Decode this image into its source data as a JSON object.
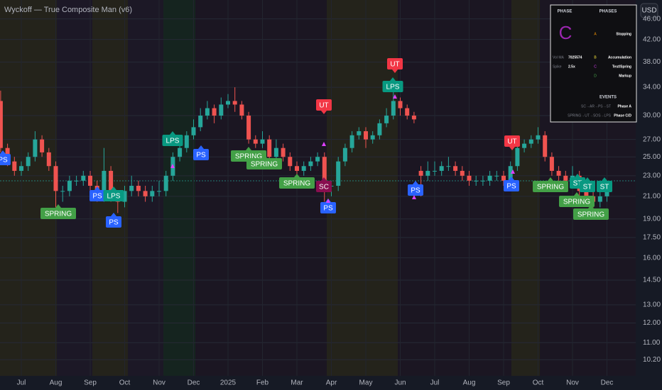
{
  "chart_data": {
    "type": "candlestick",
    "title": "Wyckoff — True Composite Man (v6)",
    "currency": "USD",
    "categories": [
      null,
      null,
      null,
      "Jul",
      null,
      null,
      null,
      null,
      "Aug",
      null,
      null,
      null,
      null,
      "Sep",
      null,
      null,
      null,
      null,
      "Oct",
      null,
      null,
      null,
      null,
      "Nov",
      null,
      null,
      null,
      null,
      "Dec",
      null,
      null,
      null,
      null,
      "2025",
      null,
      null,
      null,
      null,
      "Feb",
      null,
      null,
      null,
      null,
      "Mar",
      null,
      null,
      null,
      null,
      "Apr",
      null,
      null,
      null,
      null,
      "May",
      null,
      null,
      null,
      null,
      "Jun",
      null,
      null,
      null,
      null,
      "Jul",
      null,
      null,
      null,
      null,
      "Aug",
      null,
      null,
      null,
      null,
      "Sep",
      null,
      null,
      null,
      null,
      "Oct",
      null,
      null,
      null,
      null,
      "Nov",
      null,
      null,
      null,
      null,
      "Dec"
    ],
    "open": [
      32,
      26,
      24.5,
      23.5,
      24,
      25,
      27,
      25.5,
      24,
      21.5,
      21.5,
      22.5,
      22.5,
      23,
      22,
      21,
      23.5,
      21,
      20.5,
      21.5,
      22,
      21.5,
      21,
      21.5,
      21.5,
      23,
      25,
      26,
      27.5,
      28.5,
      30,
      31,
      30,
      31.5,
      32,
      31.5,
      30,
      27,
      26.5,
      27,
      25,
      26,
      25,
      24,
      23.5,
      24,
      24.5,
      25,
      22,
      22,
      24.5,
      26,
      27.5,
      28,
      27,
      27.5,
      29,
      30,
      32,
      31,
      30,
      23.5,
      23,
      23.5,
      23.5,
      24,
      24,
      23.5,
      23,
      22.5,
      22.5,
      22.5,
      23,
      23,
      22.5,
      24,
      26,
      26.5,
      27,
      27.5,
      25,
      23.5,
      23,
      22.5,
      23,
      21.5,
      21,
      20.5,
      21
    ],
    "high": [
      33.5,
      26.5,
      25,
      24.5,
      25.5,
      28,
      27.5,
      26,
      24.5,
      22,
      23,
      23,
      23.5,
      23.5,
      22.5,
      26,
      24,
      21.5,
      22,
      23,
      22.5,
      22,
      22,
      22.5,
      23.5,
      25.5,
      27,
      28,
      29.5,
      31,
      32,
      31.5,
      32.5,
      33,
      34,
      32,
      30.5,
      27.5,
      28,
      27.5,
      27,
      26.5,
      25.5,
      24.5,
      24.5,
      25,
      25.5,
      25.5,
      22.5,
      25,
      26.5,
      28,
      28.5,
      28.5,
      28,
      29.5,
      31,
      34.5,
      32.5,
      31.5,
      30.5,
      24,
      24.5,
      24.5,
      24.5,
      25,
      24.5,
      24,
      23.5,
      23,
      23,
      23.5,
      23.5,
      23.5,
      24.5,
      26.5,
      27,
      27.5,
      28.5,
      28,
      25.5,
      24,
      23.5,
      24,
      23.5,
      22,
      21.5,
      21.5,
      22.5
    ],
    "low": [
      25.5,
      24,
      23,
      23,
      23.5,
      24.5,
      25,
      23.5,
      20,
      20.5,
      21,
      22,
      22,
      21.5,
      20.5,
      20.5,
      20.5,
      19.5,
      20,
      21,
      21,
      20.5,
      20.5,
      21,
      21,
      22.5,
      24.5,
      25.5,
      27,
      28,
      29.5,
      29,
      29.5,
      31,
      30.5,
      29.5,
      26.5,
      26,
      26,
      24.5,
      24.5,
      24.5,
      23.5,
      23,
      23,
      23.5,
      24,
      20.5,
      21,
      21.5,
      24,
      25.5,
      27,
      26,
      26.5,
      27,
      28.5,
      29.5,
      30,
      29.5,
      29,
      21,
      22.5,
      23,
      23,
      23.5,
      23,
      22.5,
      22,
      22,
      22,
      22,
      22.5,
      22,
      22,
      23.5,
      25.5,
      26,
      26.5,
      24.5,
      23,
      22.5,
      22,
      22,
      21,
      20.5,
      20,
      20,
      20.5
    ],
    "close": [
      26,
      24.5,
      23.5,
      24,
      25,
      27,
      25.5,
      24,
      21.5,
      21.5,
      22.5,
      22.5,
      23,
      22,
      21,
      23.5,
      21,
      20.5,
      21.5,
      22,
      21.5,
      21,
      21.5,
      21.5,
      23,
      25,
      26,
      27.5,
      28.5,
      30,
      31,
      30,
      31.5,
      32,
      31.5,
      30,
      27,
      26.5,
      27,
      25,
      26,
      25,
      24,
      23.5,
      24,
      24.5,
      25,
      22,
      22,
      24.5,
      26,
      27.5,
      28,
      27,
      27.5,
      29,
      30,
      32,
      31,
      30,
      29.5,
      23,
      23.5,
      23.5,
      24,
      24,
      23.5,
      23,
      22.5,
      22.5,
      22.5,
      23,
      23,
      22.5,
      24,
      26,
      26.5,
      27,
      27.5,
      25,
      23.5,
      23,
      22.5,
      23,
      21.5,
      21,
      20.5,
      21,
      22
    ],
    "up_color": "#26a69a",
    "down_color": "#ef5350",
    "log_scale": true,
    "grid": true,
    "ylim": [
      9.5,
      50
    ],
    "yticks": [
      {
        "value": 10.2,
        "label": "10.20"
      },
      {
        "value": 11,
        "label": "11.00"
      },
      {
        "value": 12,
        "label": "12.00"
      },
      {
        "value": 13,
        "label": "13.00"
      },
      {
        "value": 14.5,
        "label": "14.50"
      },
      {
        "value": 16,
        "label": "16.00"
      },
      {
        "value": 17.5,
        "label": "17.50"
      },
      {
        "value": 19,
        "label": "19.00"
      },
      {
        "value": 21,
        "label": "21.00"
      },
      {
        "value": 23,
        "label": "23.00"
      },
      {
        "value": 25,
        "label": "25.00"
      },
      {
        "value": 27,
        "label": "27.00"
      },
      {
        "value": 30,
        "label": "30.00"
      },
      {
        "value": 34,
        "label": "34.00"
      },
      {
        "value": 38,
        "label": "38.00"
      },
      {
        "value": 42,
        "label": "42.00"
      },
      {
        "value": 46,
        "label": "46.00"
      }
    ],
    "annotations": [
      "PS",
      "SPRING",
      "PS",
      "LPS",
      "PS",
      "LPS",
      "PS",
      "SPRING",
      "SPRING",
      "SPRING",
      "UT",
      "SC",
      "PS",
      "UT",
      "LPS",
      "PS",
      "UT",
      "PS",
      "SPRING",
      "ST",
      "ST",
      "SPRING",
      "SPRING",
      "ST"
    ],
    "annotation_colors": {
      "PS": "#2962ff",
      "SPRING": "#43a047",
      "UT": "#f23645",
      "LPS": "#089981",
      "ST": "#089981",
      "SC": "#880e4f"
    }
  },
  "panel": {
    "headers": [
      "PHASE",
      "PHASES"
    ],
    "current_phase": "C",
    "rows": [
      [
        "Vol MA",
        "7025574"
      ],
      [
        "Spike",
        "2.5x"
      ]
    ],
    "phases": [
      [
        "A",
        "Stopping"
      ],
      [
        "B",
        "Accumulation"
      ],
      [
        "C",
        "Test/Spring"
      ],
      [
        "D",
        "Markup"
      ]
    ],
    "events_title": "EVENTS",
    "events": [
      [
        "SC→AR→PS→ST",
        "Phase A"
      ],
      [
        "SPRING→UT→SOS→LPS",
        "Phase C/D"
      ]
    ]
  }
}
